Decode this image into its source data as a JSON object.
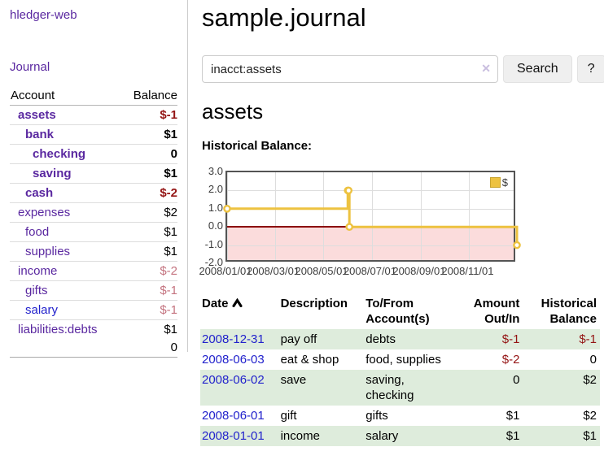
{
  "palette": {
    "link_purple": "#5a28a0",
    "link_blue": "#2222cc",
    "neg_strong": "#941414",
    "neg_soft": "#c4737f",
    "row_green": "#deecdc",
    "series_gold": "#edc240",
    "neg_region_pink": "#fbdcdc",
    "zero_line_red": "#8b0000"
  },
  "sidebar": {
    "brand": "hledger-web",
    "journal_link": "Journal",
    "account_header": "Account",
    "balance_header": "Balance",
    "accounts": [
      {
        "name": "assets",
        "level": 1,
        "bold": true,
        "link": "purple",
        "balance": "$-1",
        "tone": "neg-strong"
      },
      {
        "name": "bank",
        "level": 2,
        "bold": true,
        "link": "purple",
        "balance": "$1",
        "tone": "normal"
      },
      {
        "name": "checking",
        "level": 3,
        "bold": true,
        "link": "purple",
        "balance": "0",
        "tone": "normal"
      },
      {
        "name": "saving",
        "level": 3,
        "bold": true,
        "link": "purple",
        "balance": "$1",
        "tone": "normal"
      },
      {
        "name": "cash",
        "level": 2,
        "bold": true,
        "link": "purple",
        "balance": "$-2",
        "tone": "neg-strong"
      },
      {
        "name": "expenses",
        "level": 1,
        "bold": false,
        "link": "purple",
        "balance": "$2",
        "tone": "normal"
      },
      {
        "name": "food",
        "level": 2,
        "bold": false,
        "link": "purple",
        "balance": "$1",
        "tone": "normal"
      },
      {
        "name": "supplies",
        "level": 2,
        "bold": false,
        "link": "purple",
        "balance": "$1",
        "tone": "normal"
      },
      {
        "name": "income",
        "level": 1,
        "bold": false,
        "link": "purple",
        "balance": "$-2",
        "tone": "neg-soft"
      },
      {
        "name": "gifts",
        "level": 2,
        "bold": false,
        "link": "purple",
        "balance": "$-1",
        "tone": "neg-soft"
      },
      {
        "name": "salary",
        "level": 2,
        "bold": false,
        "link": "blue",
        "balance": "$-1",
        "tone": "neg-soft"
      },
      {
        "name": "liabilities:debts",
        "level": 1,
        "bold": false,
        "link": "purple",
        "balance": "$1",
        "tone": "normal"
      }
    ],
    "total": "0"
  },
  "main": {
    "title": "sample.journal",
    "search": {
      "value": "inacct:assets",
      "clear_icon": "✕",
      "search_button": "Search",
      "help_button": "?"
    },
    "account_heading": "assets"
  },
  "chart_data": {
    "type": "line",
    "subtype": "step",
    "title": "Historical Balance:",
    "legend_position": "top-right",
    "grid": true,
    "ylim": [
      -2.0,
      3.0
    ],
    "y_ticks": [
      "3.0",
      "2.0",
      "1.0",
      "0.0",
      "-1.0",
      "-2.0"
    ],
    "x_ticks": [
      "2008/01/01",
      "2008/03/01",
      "2008/05/01",
      "2008/07/01",
      "2008/09/01",
      "2008/11/01"
    ],
    "x_range": [
      "2008-01-01",
      "2008-12-31"
    ],
    "series": [
      {
        "name": "$",
        "color": "#edc240",
        "points": [
          {
            "x": "2008-01-01",
            "y": 1
          },
          {
            "x": "2008-06-01",
            "y": 2
          },
          {
            "x": "2008-06-02",
            "y": 2
          },
          {
            "x": "2008-06-03",
            "y": 0
          },
          {
            "x": "2008-12-31",
            "y": -1
          }
        ]
      }
    ]
  },
  "register": {
    "columns": [
      {
        "label": "Date",
        "sortable": true,
        "align": "left"
      },
      {
        "label": "Description",
        "align": "left"
      },
      {
        "label": "To/From\nAccount(s)",
        "align": "left"
      },
      {
        "label": "Amount\nOut/In",
        "align": "right"
      },
      {
        "label": "Historical\nBalance",
        "align": "right"
      }
    ],
    "rows": [
      {
        "date": "2008-12-31",
        "description": "pay off",
        "accounts": "debts",
        "amount": "$-1",
        "balance": "$-1"
      },
      {
        "date": "2008-06-03",
        "description": "eat & shop",
        "accounts": "food, supplies",
        "amount": "$-2",
        "balance": "0"
      },
      {
        "date": "2008-06-02",
        "description": "save",
        "accounts": "saving,\nchecking",
        "amount": "0",
        "balance": "$2"
      },
      {
        "date": "2008-06-01",
        "description": "gift",
        "accounts": "gifts",
        "amount": "$1",
        "balance": "$2"
      },
      {
        "date": "2008-01-01",
        "description": "income",
        "accounts": "salary",
        "amount": "$1",
        "balance": "$1"
      }
    ]
  }
}
